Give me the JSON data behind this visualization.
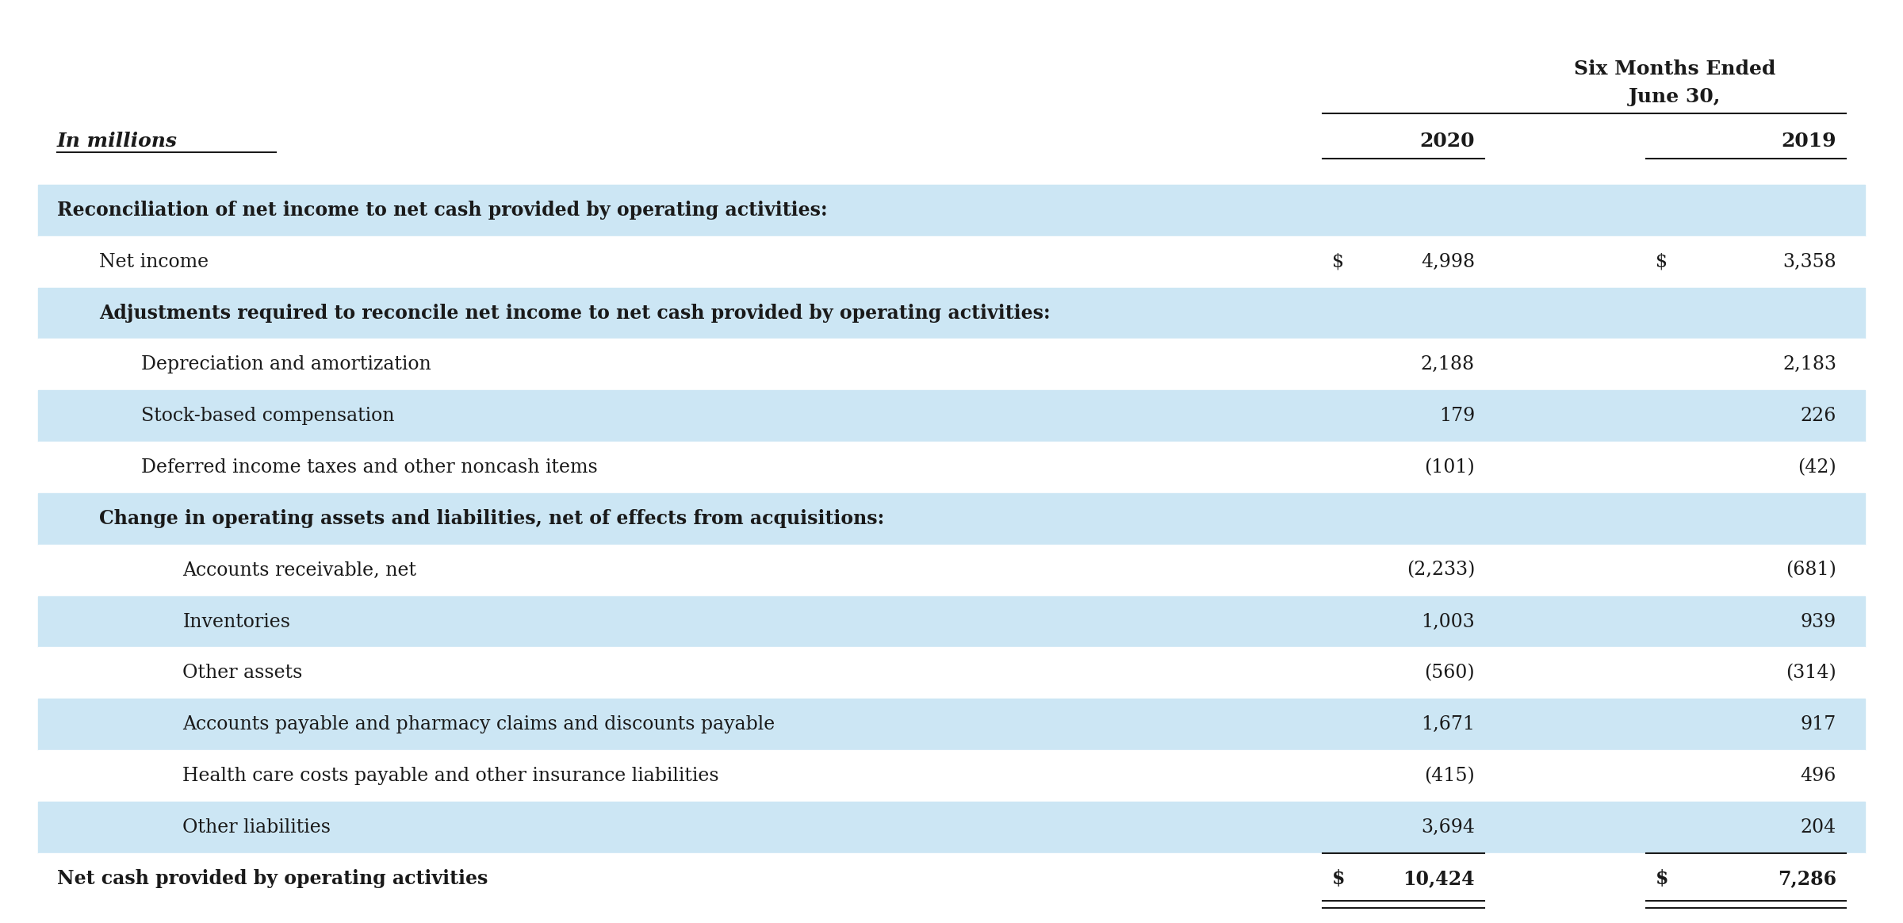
{
  "header_title_line1": "Six Months Ended",
  "header_title_line2": "June 30,",
  "col_header_label": "In millions",
  "col_2020": "2020",
  "col_2019": "2019",
  "rows": [
    {
      "label": "Reconciliation of net income to net cash provided by operating activities:",
      "val2020": "",
      "val2019": "",
      "indent": 0,
      "style": "subheader",
      "bg": "#cce6f4"
    },
    {
      "label": "Net income",
      "val2020": "4,998",
      "val2019": "3,358",
      "indent": 1,
      "style": "normal",
      "bg": "#ffffff",
      "dollar2020": "$",
      "dollar2019": "$"
    },
    {
      "label": "Adjustments required to reconcile net income to net cash provided by operating activities:",
      "val2020": "",
      "val2019": "",
      "indent": 1,
      "style": "subheader2",
      "bg": "#cce6f4"
    },
    {
      "label": "Depreciation and amortization",
      "val2020": "2,188",
      "val2019": "2,183",
      "indent": 2,
      "style": "normal",
      "bg": "#ffffff"
    },
    {
      "label": "Stock-based compensation",
      "val2020": "179",
      "val2019": "226",
      "indent": 2,
      "style": "normal",
      "bg": "#cce6f4"
    },
    {
      "label": "Deferred income taxes and other noncash items",
      "val2020": "(101)",
      "val2019": "(42)",
      "indent": 2,
      "style": "normal",
      "bg": "#ffffff"
    },
    {
      "label": "Change in operating assets and liabilities, net of effects from acquisitions:",
      "val2020": "",
      "val2019": "",
      "indent": 1,
      "style": "subheader2",
      "bg": "#cce6f4"
    },
    {
      "label": "Accounts receivable, net",
      "val2020": "(2,233)",
      "val2019": "(681)",
      "indent": 3,
      "style": "normal",
      "bg": "#ffffff"
    },
    {
      "label": "Inventories",
      "val2020": "1,003",
      "val2019": "939",
      "indent": 3,
      "style": "normal",
      "bg": "#cce6f4"
    },
    {
      "label": "Other assets",
      "val2020": "(560)",
      "val2019": "(314)",
      "indent": 3,
      "style": "normal",
      "bg": "#ffffff"
    },
    {
      "label": "Accounts payable and pharmacy claims and discounts payable",
      "val2020": "1,671",
      "val2019": "917",
      "indent": 3,
      "style": "normal",
      "bg": "#cce6f4"
    },
    {
      "label": "Health care costs payable and other insurance liabilities",
      "val2020": "(415)",
      "val2019": "496",
      "indent": 3,
      "style": "normal",
      "bg": "#ffffff"
    },
    {
      "label": "Other liabilities",
      "val2020": "3,694",
      "val2019": "204",
      "indent": 3,
      "style": "normal",
      "bg": "#cce6f4",
      "underline": true
    },
    {
      "label": "Net cash provided by operating activities",
      "val2020": "10,424",
      "val2019": "7,286",
      "indent": 0,
      "style": "total",
      "bg": "#ffffff",
      "dollar2020": "$",
      "dollar2019": "$",
      "double_underline": true
    }
  ],
  "font_family": "serif",
  "font_size_header": 18,
  "font_size_col_header": 18,
  "font_size_row": 17,
  "text_color": "#1a1a1a",
  "header_bg": "#cce6f4",
  "white_bg": "#ffffff",
  "border_color": "#1a1a1a"
}
